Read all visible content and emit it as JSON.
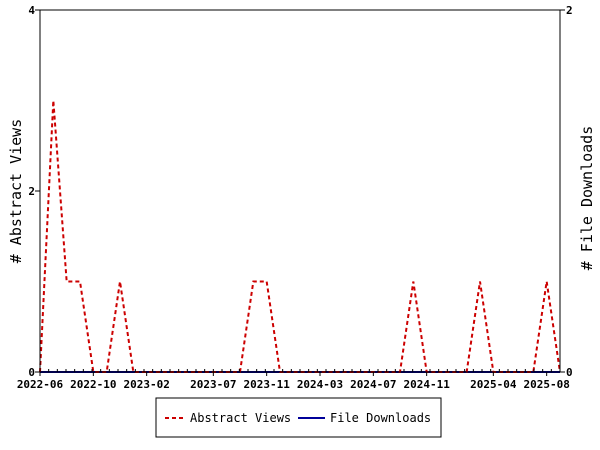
{
  "chart_data": {
    "type": "line",
    "ylabel": "# Abstract Views",
    "y2label": "# File Downloads",
    "ylim": [
      0,
      4
    ],
    "y2lim": [
      0,
      2
    ],
    "yticks": [
      "0",
      "2",
      "4"
    ],
    "y2ticks": [
      "0",
      "2"
    ],
    "x_tick_labels": [
      "2022-06",
      "2022-10",
      "2023-02",
      "2023-07",
      "2023-11",
      "2024-03",
      "2024-07",
      "2024-11",
      "2025-04",
      "2025-08"
    ],
    "x_tick_months": [
      0,
      4,
      8,
      13,
      17,
      21,
      25,
      29,
      34,
      38
    ],
    "x_range_months": [
      0,
      39
    ],
    "x_categories": [
      "2022-06",
      "2022-07",
      "2022-08",
      "2022-09",
      "2022-10",
      "2022-11",
      "2022-12",
      "2023-01",
      "2023-02",
      "2023-03",
      "2023-04",
      "2023-05",
      "2023-06",
      "2023-07",
      "2023-08",
      "2023-09",
      "2023-10",
      "2023-11",
      "2023-12",
      "2024-01",
      "2024-02",
      "2024-03",
      "2024-04",
      "2024-05",
      "2024-06",
      "2024-07",
      "2024-08",
      "2024-09",
      "2024-10",
      "2024-11",
      "2024-12",
      "2025-01",
      "2025-02",
      "2025-03",
      "2025-04",
      "2025-05",
      "2025-06",
      "2025-07",
      "2025-08",
      "2025-09"
    ],
    "series": [
      {
        "name": "Abstract Views",
        "axis": "left",
        "color": "#cc0000",
        "dash": "dashed",
        "values": [
          0,
          3,
          1,
          1,
          0,
          0,
          1,
          0,
          0,
          0,
          0,
          0,
          0,
          0,
          0,
          0,
          1,
          1,
          0,
          0,
          0,
          0,
          0,
          0,
          0,
          0,
          0,
          0,
          1,
          0,
          0,
          0,
          0,
          1,
          0,
          0,
          0,
          0,
          1,
          0
        ]
      },
      {
        "name": "File Downloads",
        "axis": "right",
        "color": "#000099",
        "dash": "solid",
        "values": [
          0,
          0,
          0,
          0,
          0,
          0,
          0,
          0,
          0,
          0,
          0,
          0,
          0,
          0,
          0,
          0,
          0,
          0,
          0,
          0,
          0,
          0,
          0,
          0,
          0,
          0,
          0,
          0,
          0,
          0,
          0,
          0,
          0,
          0,
          0,
          0,
          0,
          0,
          0,
          0
        ]
      }
    ],
    "legend_position": "bottom"
  }
}
